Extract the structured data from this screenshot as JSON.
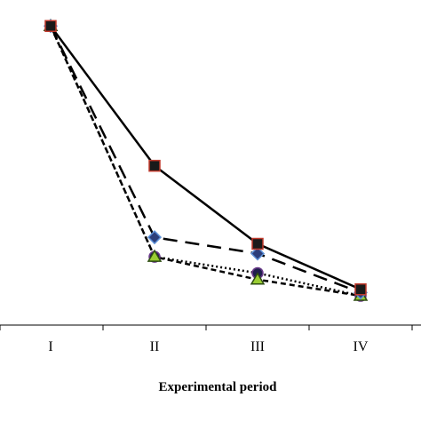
{
  "chart_data": {
    "type": "line",
    "title": "",
    "xlabel": "Experimental period",
    "ylabel": "",
    "categories": [
      "I",
      "II",
      "III",
      "IV"
    ],
    "ylim": [
      0,
      1.0
    ],
    "grid": false,
    "legend": "none",
    "series": [
      {
        "key": "squares",
        "marker": "square",
        "line_style": "solid",
        "marker_fill": "#1a1a1a",
        "marker_stroke": "#c0392b",
        "values": [
          0.92,
          0.49,
          0.25,
          0.11
        ]
      },
      {
        "key": "diamonds",
        "marker": "diamond",
        "line_style": "long-dash",
        "marker_fill": "#2c3e7a",
        "marker_stroke": "#5b8fd6",
        "values": [
          0.92,
          0.27,
          0.22,
          0.1
        ]
      },
      {
        "key": "triangles",
        "marker": "triangle",
        "line_style": "short-dash",
        "marker_fill": "#9acd32",
        "marker_stroke": "#2e4d12",
        "values": [
          0.92,
          0.21,
          0.14,
          0.09
        ]
      },
      {
        "key": "circles",
        "marker": "circle",
        "line_style": "dotted",
        "marker_fill": "#1f1f4d",
        "marker_stroke": "#6a3a8a",
        "values": [
          0.92,
          0.21,
          0.16,
          0.09
        ]
      }
    ]
  }
}
